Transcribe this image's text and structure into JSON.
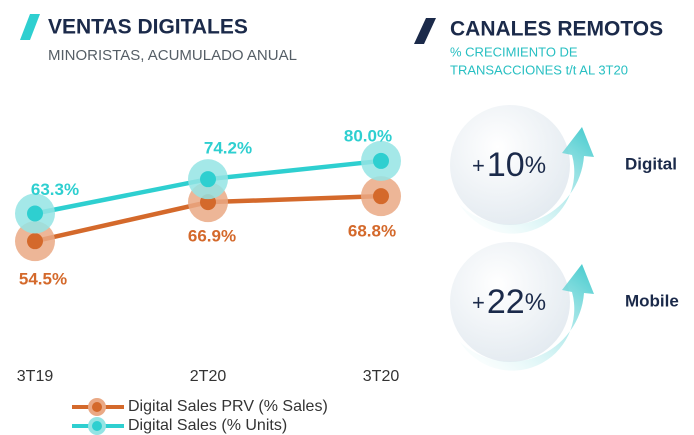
{
  "chart_data": {
    "type": "line",
    "title": "VENTAS DIGITALES",
    "subtitle": "MINORISTAS, ACUMULADO ANUAL",
    "categories": [
      "3T19",
      "2T20",
      "3T20"
    ],
    "series": [
      {
        "name": "Digital Sales PRV (% Sales)",
        "color": "#d4692b",
        "halo": "#eaa985",
        "values": [
          54.5,
          66.9,
          68.8
        ],
        "value_labels": [
          "54.5%",
          "66.9%",
          "68.8%"
        ]
      },
      {
        "name": "Digital Sales (% Units)",
        "color": "#2ecfd0",
        "halo": "#94e4e4",
        "values": [
          63.3,
          74.2,
          80.0
        ],
        "value_labels": [
          "63.3%",
          "74.2%",
          "80.0%"
        ]
      }
    ],
    "ylim": [
      25,
      100
    ]
  },
  "remote_channels": {
    "title": "CANALES REMOTOS",
    "subtitle_lines": [
      "% CRECIMIENTO DE",
      "TRANSACCIONES t/t AL 3T20"
    ],
    "items": [
      {
        "sign": "+",
        "value": 10,
        "unit": "%",
        "label": "Digital"
      },
      {
        "sign": "+",
        "value": 22,
        "unit": "%",
        "label": "Mobile"
      }
    ]
  }
}
